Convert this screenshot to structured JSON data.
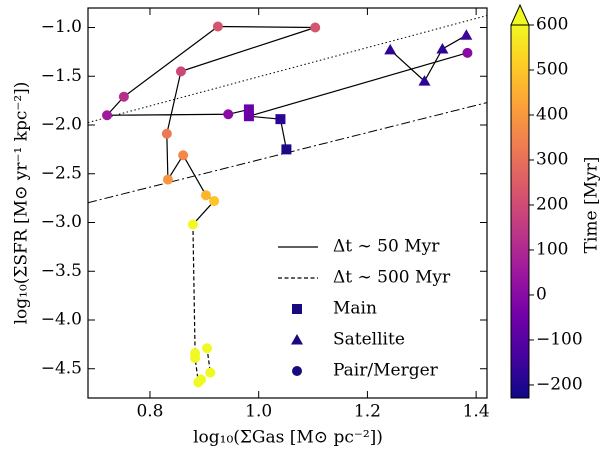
{
  "chart_data": {
    "type": "scatter",
    "x_label": "log₁₀(ΣGas [M⊙ pc⁻²])",
    "y_label": "log₁₀(ΣSFR [M⊙ yr⁻¹ kpc⁻²])",
    "xlim": [
      0.686,
      1.42
    ],
    "ylim": [
      -4.8,
      -0.8
    ],
    "xticks": [
      0.8,
      {
        "value": 1,
        "label": "1.0"
      },
      1.2,
      1.4
    ],
    "yticks": [
      {
        "value": -1,
        "label": "−1.0"
      },
      {
        "value": -1.5,
        "label": "−1.5"
      },
      {
        "value": -2,
        "label": "−2.0"
      },
      {
        "value": -2.5,
        "label": "−2.5"
      },
      {
        "value": -3,
        "label": "−3.0"
      },
      {
        "value": -3.5,
        "label": "−3.5"
      },
      {
        "value": -4,
        "label": "−4.0"
      },
      {
        "value": -4.5,
        "label": "−4.5"
      }
    ],
    "reference_lines": [
      {
        "style": "dotted",
        "x": [
          0.686,
          1.42
        ],
        "y": [
          -1.975,
          -0.877
        ]
      },
      {
        "style": "dashdot",
        "x": [
          0.686,
          1.42
        ],
        "y": [
          -2.797,
          -1.77
        ]
      }
    ],
    "tracks": [
      {
        "name": "Δt ∼ 50 Myr",
        "style": "solid",
        "x": [
          1.242,
          1.305,
          1.338,
          1.382,
          null,
          1.051,
          1.04,
          0.982,
          1.384,
          null,
          0.982,
          0.944,
          0.721,
          0.752,
          0.925,
          1.104,
          0.857,
          0.831,
          0.833,
          0.861,
          0.903,
          0.918,
          0.879
        ],
        "y": [
          -1.23,
          -1.55,
          -1.22,
          -1.08,
          null,
          -2.25,
          -1.94,
          -1.91,
          -1.26,
          null,
          -1.84,
          -1.89,
          -1.9,
          -1.71,
          -0.99,
          -1.0,
          -1.45,
          -2.09,
          -2.56,
          -2.31,
          -2.72,
          -2.78,
          -3.02
        ]
      },
      {
        "name": "Δt ∼ 500 Myr",
        "style": "dashed",
        "x": [
          0.879,
          0.883,
          0.883,
          0.889,
          0.894,
          0.911,
          0.905
        ],
        "y": [
          -3.02,
          -4.34,
          -4.39,
          -4.64,
          -4.61,
          -4.54,
          -4.29
        ]
      }
    ],
    "series": [
      {
        "name": "Main",
        "marker": "square",
        "x": [
          0.982,
          0.982,
          1.04,
          1.051
        ],
        "y": [
          -1.84,
          -1.91,
          -1.94,
          -2.25
        ],
        "colors": [
          "#6a00a8",
          "#6a00a8",
          "#2c0594",
          "#1e0a86"
        ]
      },
      {
        "name": "Satellite",
        "marker": "triangle",
        "x": [
          1.242,
          1.338,
          1.382,
          1.305
        ],
        "y": [
          -1.23,
          -1.22,
          -1.08,
          -1.55
        ],
        "colors": [
          "#2c0594",
          "#2c0594",
          "#3e049c",
          "#2c0594"
        ]
      },
      {
        "name": "Pair/Merger",
        "marker": "circle",
        "x": [
          1.384,
          0.944,
          0.721,
          0.752,
          0.857,
          0.925,
          1.104,
          0.831,
          0.861,
          0.833,
          0.903,
          0.918,
          0.879,
          0.883,
          0.883,
          0.905,
          0.911,
          0.894,
          0.889
        ],
        "y": [
          -1.26,
          -1.89,
          -1.9,
          -1.71,
          -1.45,
          -0.99,
          -1.0,
          -2.09,
          -2.31,
          -2.56,
          -2.72,
          -2.78,
          -3.02,
          -4.34,
          -4.39,
          -4.29,
          -4.54,
          -4.61,
          -4.64
        ],
        "colors": [
          "#8b0aa5",
          "#8b0aa5",
          "#a01a9c",
          "#b52f8c",
          "#cc4778",
          "#d5546e",
          "#d5546e",
          "#ed7953",
          "#f48849",
          "#f89540",
          "#fdb42f",
          "#fdc527",
          "#f0f921",
          "#f0f921",
          "#f0f921",
          "#f0f921",
          "#f0f921",
          "#f0f921",
          "#f0f921"
        ]
      }
    ],
    "legend_marker_color": "#1a0a80",
    "colorbar": {
      "label": "Time [Myr]",
      "lim": [
        -229,
        600
      ],
      "ticks": [
        {
          "value": -200,
          "label": "−200"
        },
        {
          "value": -100,
          "label": "−100"
        },
        0,
        100,
        200,
        300,
        400,
        500,
        600
      ],
      "colormap": [
        "#0d0887",
        "#46039f",
        "#7201a8",
        "#9c179e",
        "#bd3786",
        "#d8576b",
        "#ed7953",
        "#fb9f3a",
        "#fdca26",
        "#f0f921"
      ],
      "extend": "max"
    }
  }
}
